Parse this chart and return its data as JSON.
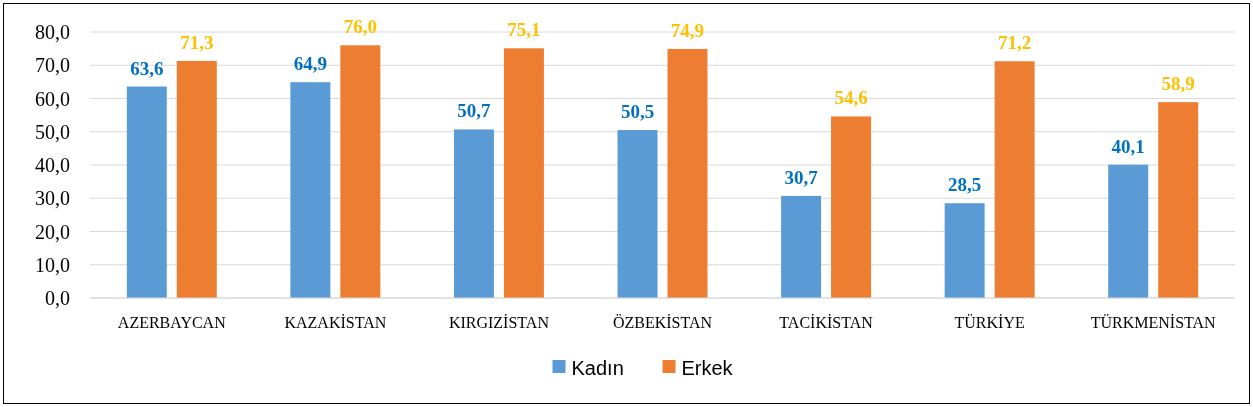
{
  "chart_data": {
    "type": "bar",
    "categories": [
      "AZERBAYCAN",
      "KAZAKİSTAN",
      "KIRGIZİSTAN",
      "ÖZBEKİSTAN",
      "TACİKİSTAN",
      "TÜRKİYE",
      "TÜRKMENİSTAN"
    ],
    "series": [
      {
        "name": "Kadın",
        "color": "#5b9bd5",
        "values": [
          63.6,
          64.9,
          50.7,
          50.5,
          30.7,
          28.5,
          40.1
        ]
      },
      {
        "name": "Erkek",
        "color": "#ed7d31",
        "values": [
          71.3,
          76.0,
          75.1,
          74.9,
          54.6,
          71.2,
          58.9
        ]
      }
    ],
    "ylim": [
      0,
      80
    ],
    "yticks": [
      {
        "value": 0,
        "label": "0,0"
      },
      {
        "value": 10,
        "label": "10,0"
      },
      {
        "value": 20,
        "label": "20,0"
      },
      {
        "value": 30,
        "label": "30,0"
      },
      {
        "value": 40,
        "label": "40,0"
      },
      {
        "value": 50,
        "label": "50,0"
      },
      {
        "value": 60,
        "label": "60,0"
      },
      {
        "value": 70,
        "label": "70,0"
      },
      {
        "value": 80,
        "label": "80,0"
      }
    ],
    "value_labels": [
      [
        "63,6",
        "64,9",
        "50,7",
        "50,5",
        "30,7",
        "28,5",
        "40,1"
      ],
      [
        "71,3",
        "76,0",
        "75,1",
        "74,9",
        "54,6",
        "71,2",
        "58,9"
      ]
    ],
    "grid": "y",
    "legend": "bottom"
  }
}
